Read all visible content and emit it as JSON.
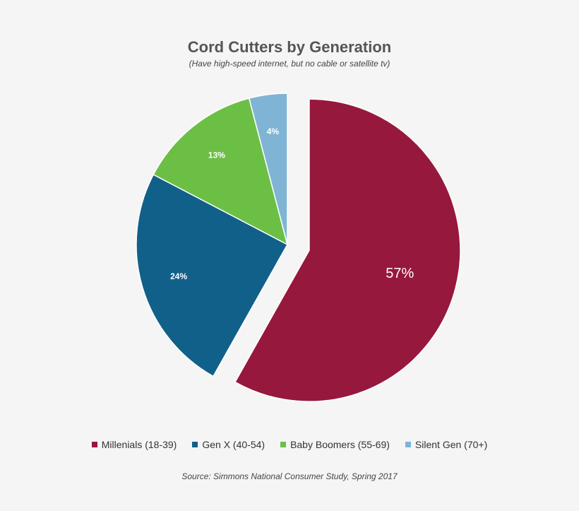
{
  "chart_data": {
    "type": "pie",
    "title": "Cord Cutters by Generation",
    "subtitle": "(Have high-speed internet, but no cable or satellite tv)",
    "slices": [
      {
        "name": "Millenials (18-39)",
        "value": 57,
        "label": "57%",
        "color": "#96183d",
        "exploded": true
      },
      {
        "name": "Gen X (40-54)",
        "value": 24,
        "label": "24%",
        "color": "#11608a",
        "exploded": false
      },
      {
        "name": "Baby Boomers (55-69)",
        "value": 13,
        "label": "13%",
        "color": "#6cbf45",
        "exploded": false
      },
      {
        "name": "Silent Gen (70+)",
        "value": 4,
        "label": "4%",
        "color": "#7fb4d4",
        "exploded": false
      }
    ],
    "legend_position": "bottom",
    "source": "Source: Simmons National Consumer Study, Spring 2017"
  }
}
